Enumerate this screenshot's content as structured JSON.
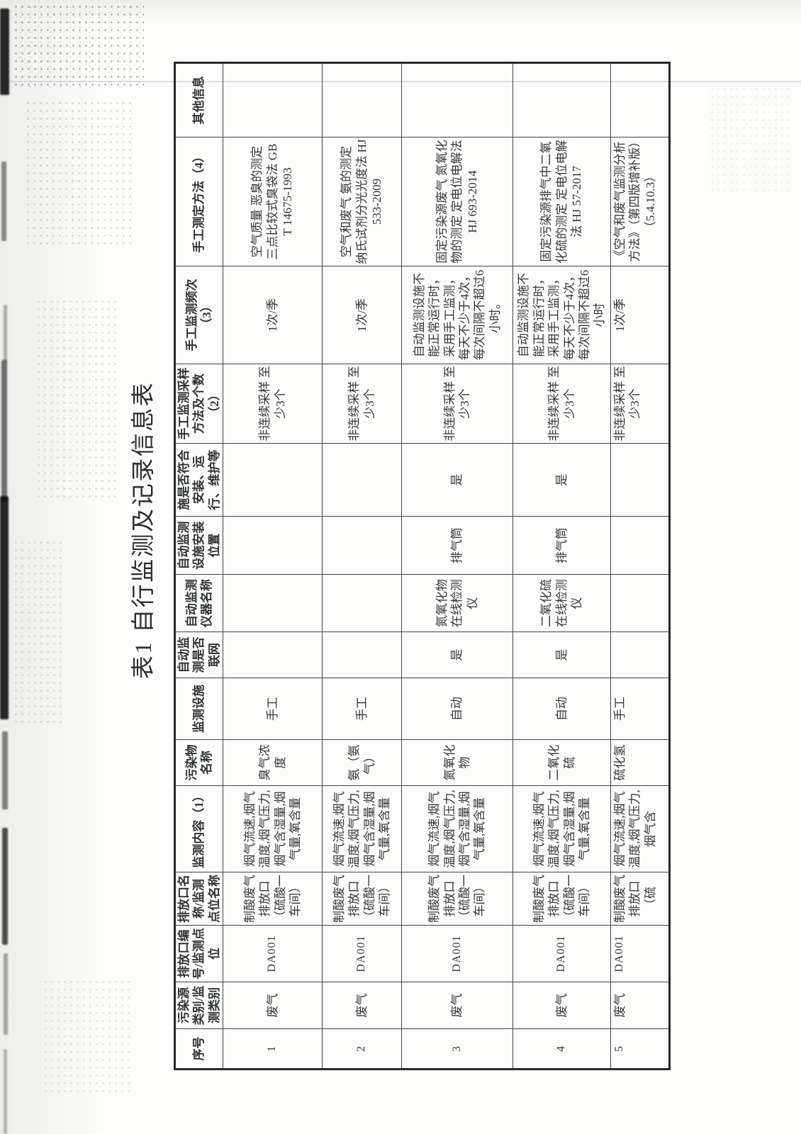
{
  "page": {
    "title": "表1 自行监测及记录信息表"
  },
  "table": {
    "headers": [
      "序号",
      "污染源类别/监测类别",
      "排放口编号/监测点位",
      "排放口名称/监测点位名称",
      "监测内容（1）",
      "污染物名称",
      "监测设施",
      "自动监测是否联网",
      "自动监测仪器名称",
      "自动监测设施安装位置",
      "自动监测设施是否符合安装、运行、维护等管理要求",
      "手工监测采样方法及个数（2）",
      "手工监测频次（3）",
      "手工测定方法（4）",
      "其他信息"
    ],
    "rows": [
      {
        "cells": [
          "1",
          "废气",
          "DA001",
          "制酸废气排放口（硫酸一车间）",
          "烟气流速,烟气温度,烟气压力,烟气含湿量,烟气量,氧含量",
          "臭气浓度",
          "手工",
          "",
          "",
          "",
          "",
          "非连续采样 至少3个",
          "1次/季",
          "空气质量 恶臭的测定 三点比较式臭袋法 GB T 14675-1993",
          ""
        ]
      },
      {
        "cells": [
          "2",
          "废气",
          "DA001",
          "制酸废气排放口（硫酸一车间）",
          "烟气流速,烟气温度,烟气压力,烟气含湿量,烟气量,氧含量",
          "氨（氨气）",
          "手工",
          "",
          "",
          "",
          "",
          "非连续采样 至少3个",
          "1次/季",
          "空气和废气 氨的测定 纳氏试剂分光光度法 HJ 533-2009",
          ""
        ]
      },
      {
        "cells": [
          "3",
          "废气",
          "DA001",
          "制酸废气排放口（硫酸一车间）",
          "烟气流速,烟气温度,烟气压力,烟气含湿量,烟气量,氧含量",
          "氮氧化物",
          "自动",
          "是",
          "氮氧化物在线检测仪",
          "排气筒",
          "是",
          "非连续采样 至少3个",
          "自动监测设施不能正常运行时，采用手工监测，每天不少于4次，每次间隔不超过6小时。",
          "固定污染源废气 氮氧化物的测定 定电位电解法 HJ 693-2014",
          ""
        ]
      },
      {
        "cells": [
          "4",
          "废气",
          "DA001",
          "制酸废气排放口（硫酸一车间）",
          "烟气流速,烟气温度,烟气压力,烟气含湿量,烟气量,氧含量",
          "二氧化硫",
          "自动",
          "是",
          "二氧化硫在线检测仪",
          "排气筒",
          "是",
          "非连续采样 至少3个",
          "自动监测设施不能正常运行时，采用手工监测，每天不少于4次，每次间隔不超过6小时",
          "固定污染源排气中二氧化硫的测定 定电位电解法 HJ 57-2017",
          ""
        ]
      },
      {
        "cells": [
          "5",
          "废气",
          "DA001",
          "制酸废气排放口（硫",
          "烟气流速,烟气温度,烟气压力,烟气含",
          "硫化氢",
          "手工",
          "",
          "",
          "",
          "",
          "非连续采样 至少3个",
          "1次/季",
          "《空气和废气监测分析方法》（第四版增补版）（5.4.10.3）",
          ""
        ]
      }
    ]
  }
}
